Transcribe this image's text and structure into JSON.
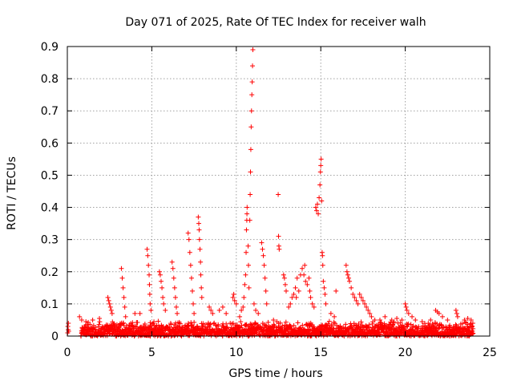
{
  "chart_data": {
    "type": "scatter",
    "title": "Day 071 of 2025, Rate Of TEC Index for receiver walh",
    "xlabel": "GPS time / hours",
    "ylabel": "ROTI / TECUs",
    "xlim": [
      0,
      25
    ],
    "ylim": [
      0,
      0.9
    ],
    "xticks": [
      "0",
      "5",
      "10",
      "15",
      "20",
      "25"
    ],
    "yticks": [
      "0",
      "0.1",
      "0.2",
      "0.3",
      "0.4",
      "0.5",
      "0.6",
      "0.7",
      "0.8",
      "0.9"
    ],
    "grid": true,
    "marker": "+",
    "color": "#ff0000",
    "baseline": {
      "from_hour": 0.8,
      "to_hour": 24.0,
      "typical_max": 0.04
    },
    "series": [
      {
        "points": [
          [
            0.02,
            0.01
          ],
          [
            0.03,
            0.03
          ],
          [
            0.05,
            0.02
          ],
          [
            0.06,
            0.04
          ],
          [
            0.08,
            0.015
          ],
          [
            0.72,
            0.06
          ],
          [
            0.85,
            0.05
          ],
          [
            1.1,
            0.045
          ],
          [
            1.5,
            0.05
          ],
          [
            1.9,
            0.055
          ],
          [
            2.4,
            0.12
          ],
          [
            2.45,
            0.11
          ],
          [
            2.5,
            0.1
          ],
          [
            2.55,
            0.09
          ],
          [
            2.6,
            0.08
          ],
          [
            2.65,
            0.07
          ],
          [
            3.2,
            0.21
          ],
          [
            3.25,
            0.18
          ],
          [
            3.3,
            0.15
          ],
          [
            3.35,
            0.12
          ],
          [
            3.4,
            0.09
          ],
          [
            3.45,
            0.06
          ],
          [
            4.0,
            0.07
          ],
          [
            4.3,
            0.07
          ],
          [
            4.72,
            0.27
          ],
          [
            4.76,
            0.25
          ],
          [
            4.8,
            0.22
          ],
          [
            4.84,
            0.19
          ],
          [
            4.86,
            0.16
          ],
          [
            4.88,
            0.13
          ],
          [
            4.9,
            0.1
          ],
          [
            4.95,
            0.08
          ],
          [
            5.45,
            0.2
          ],
          [
            5.5,
            0.19
          ],
          [
            5.55,
            0.17
          ],
          [
            5.6,
            0.15
          ],
          [
            5.65,
            0.12
          ],
          [
            5.7,
            0.1
          ],
          [
            5.8,
            0.08
          ],
          [
            6.2,
            0.23
          ],
          [
            6.25,
            0.21
          ],
          [
            6.3,
            0.18
          ],
          [
            6.35,
            0.15
          ],
          [
            6.4,
            0.12
          ],
          [
            6.45,
            0.09
          ],
          [
            6.5,
            0.07
          ],
          [
            7.15,
            0.32
          ],
          [
            7.2,
            0.3
          ],
          [
            7.25,
            0.26
          ],
          [
            7.3,
            0.22
          ],
          [
            7.35,
            0.18
          ],
          [
            7.4,
            0.14
          ],
          [
            7.45,
            0.1
          ],
          [
            7.5,
            0.07
          ],
          [
            7.75,
            0.37
          ],
          [
            7.78,
            0.35
          ],
          [
            7.8,
            0.33
          ],
          [
            7.82,
            0.3
          ],
          [
            7.85,
            0.27
          ],
          [
            7.88,
            0.23
          ],
          [
            7.9,
            0.19
          ],
          [
            7.93,
            0.15
          ],
          [
            7.96,
            0.12
          ],
          [
            8.4,
            0.09
          ],
          [
            8.5,
            0.08
          ],
          [
            8.6,
            0.07
          ],
          [
            9.0,
            0.08
          ],
          [
            9.2,
            0.09
          ],
          [
            9.4,
            0.07
          ],
          [
            9.8,
            0.12
          ],
          [
            9.85,
            0.13
          ],
          [
            9.9,
            0.11
          ],
          [
            10.0,
            0.1
          ],
          [
            10.2,
            0.06
          ],
          [
            10.3,
            0.08
          ],
          [
            10.4,
            0.09
          ],
          [
            10.45,
            0.12
          ],
          [
            10.5,
            0.16
          ],
          [
            10.55,
            0.19
          ],
          [
            10.58,
            0.26
          ],
          [
            10.6,
            0.33
          ],
          [
            10.62,
            0.36
          ],
          [
            10.63,
            0.38
          ],
          [
            10.64,
            0.4
          ],
          [
            10.7,
            0.28
          ],
          [
            10.72,
            0.22
          ],
          [
            10.75,
            0.15
          ],
          [
            10.8,
            0.36
          ],
          [
            10.82,
            0.44
          ],
          [
            10.84,
            0.51
          ],
          [
            10.86,
            0.58
          ],
          [
            10.88,
            0.65
          ],
          [
            10.9,
            0.7
          ],
          [
            10.92,
            0.75
          ],
          [
            10.94,
            0.79
          ],
          [
            10.96,
            0.84
          ],
          [
            10.98,
            0.89
          ],
          [
            11.05,
            0.1
          ],
          [
            11.15,
            0.08
          ],
          [
            11.3,
            0.07
          ],
          [
            11.5,
            0.29
          ],
          [
            11.55,
            0.27
          ],
          [
            11.6,
            0.25
          ],
          [
            11.65,
            0.22
          ],
          [
            11.7,
            0.18
          ],
          [
            11.75,
            0.14
          ],
          [
            11.8,
            0.1
          ],
          [
            12.2,
            0.05
          ],
          [
            12.4,
            0.045
          ],
          [
            12.48,
            0.44
          ],
          [
            12.5,
            0.31
          ],
          [
            12.52,
            0.28
          ],
          [
            12.54,
            0.27
          ],
          [
            12.8,
            0.19
          ],
          [
            12.85,
            0.18
          ],
          [
            12.9,
            0.16
          ],
          [
            12.95,
            0.14
          ],
          [
            13.1,
            0.09
          ],
          [
            13.2,
            0.1
          ],
          [
            13.3,
            0.12
          ],
          [
            13.4,
            0.13
          ],
          [
            13.5,
            0.15
          ],
          [
            13.55,
            0.12
          ],
          [
            13.6,
            0.18
          ],
          [
            13.7,
            0.14
          ],
          [
            13.8,
            0.19
          ],
          [
            13.9,
            0.21
          ],
          [
            14.0,
            0.19
          ],
          [
            14.05,
            0.22
          ],
          [
            14.1,
            0.17
          ],
          [
            14.2,
            0.16
          ],
          [
            14.3,
            0.18
          ],
          [
            14.35,
            0.14
          ],
          [
            14.4,
            0.12
          ],
          [
            14.5,
            0.1
          ],
          [
            14.6,
            0.09
          ],
          [
            14.7,
            0.4
          ],
          [
            14.75,
            0.39
          ],
          [
            14.8,
            0.41
          ],
          [
            14.85,
            0.38
          ],
          [
            14.9,
            0.43
          ],
          [
            14.95,
            0.47
          ],
          [
            14.98,
            0.51
          ],
          [
            15.0,
            0.53
          ],
          [
            15.02,
            0.55
          ],
          [
            15.05,
            0.42
          ],
          [
            15.08,
            0.26
          ],
          [
            15.1,
            0.25
          ],
          [
            15.12,
            0.22
          ],
          [
            15.15,
            0.17
          ],
          [
            15.2,
            0.15
          ],
          [
            15.25,
            0.13
          ],
          [
            15.3,
            0.1
          ],
          [
            15.6,
            0.07
          ],
          [
            15.8,
            0.06
          ],
          [
            15.9,
            0.14
          ],
          [
            16.5,
            0.22
          ],
          [
            16.55,
            0.2
          ],
          [
            16.6,
            0.19
          ],
          [
            16.65,
            0.18
          ],
          [
            16.7,
            0.17
          ],
          [
            16.8,
            0.15
          ],
          [
            16.9,
            0.13
          ],
          [
            17.0,
            0.12
          ],
          [
            17.1,
            0.11
          ],
          [
            17.2,
            0.1
          ],
          [
            17.3,
            0.13
          ],
          [
            17.4,
            0.12
          ],
          [
            17.5,
            0.11
          ],
          [
            17.6,
            0.1
          ],
          [
            17.7,
            0.09
          ],
          [
            17.8,
            0.08
          ],
          [
            17.9,
            0.07
          ],
          [
            18.0,
            0.06
          ],
          [
            18.2,
            0.05
          ],
          [
            18.5,
            0.05
          ],
          [
            18.8,
            0.06
          ],
          [
            19.2,
            0.05
          ],
          [
            19.5,
            0.055
          ],
          [
            19.8,
            0.05
          ],
          [
            20.0,
            0.1
          ],
          [
            20.05,
            0.09
          ],
          [
            20.1,
            0.08
          ],
          [
            20.2,
            0.07
          ],
          [
            20.4,
            0.06
          ],
          [
            20.6,
            0.05
          ],
          [
            21.0,
            0.045
          ],
          [
            21.5,
            0.05
          ],
          [
            21.8,
            0.08
          ],
          [
            21.9,
            0.075
          ],
          [
            22.0,
            0.07
          ],
          [
            22.2,
            0.06
          ],
          [
            22.5,
            0.05
          ],
          [
            23.0,
            0.08
          ],
          [
            23.05,
            0.07
          ],
          [
            23.1,
            0.06
          ],
          [
            23.5,
            0.05
          ],
          [
            23.7,
            0.055
          ],
          [
            23.9,
            0.05
          ],
          [
            24.0,
            0.04
          ]
        ]
      }
    ]
  }
}
